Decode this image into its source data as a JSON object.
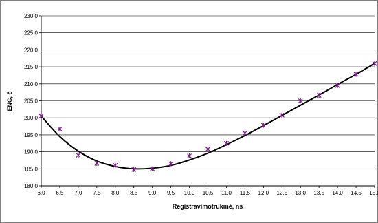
{
  "chart_data": {
    "type": "scatter",
    "title": "",
    "xlabel": "Registravimotrukmė, ns",
    "ylabel": "ENC, ē",
    "xlim": [
      6.0,
      15.0
    ],
    "ylim": [
      180.0,
      230.0
    ],
    "x_ticks": [
      6.0,
      6.5,
      7.0,
      7.5,
      8.0,
      8.5,
      9.0,
      9.5,
      10.0,
      10.5,
      11.0,
      11.5,
      12.0,
      12.5,
      13.0,
      13.5,
      14.0,
      14.5,
      15.0
    ],
    "x_tick_labels": [
      "6,0",
      "6,5",
      "7,0",
      "7,5",
      "8,0",
      "8,5",
      "9,0",
      "9,5",
      "10,0",
      "10,5",
      "11,0",
      "11,5",
      "12,0",
      "12,5",
      "13,0",
      "13,5",
      "14,0",
      "14,5",
      "15,0"
    ],
    "y_ticks": [
      180,
      185,
      190,
      195,
      200,
      205,
      210,
      215,
      220,
      225,
      230
    ],
    "y_tick_labels": [
      "180,0",
      "185,0",
      "190,0",
      "195,0",
      "200,0",
      "205,0",
      "210,0",
      "215,0",
      "220,0",
      "225,0",
      "230,0"
    ],
    "grid": "horizontal",
    "legend": "none",
    "series": [
      {
        "marker": "star",
        "color": "#7a1a8c",
        "points": [
          [
            6.0,
            200.5
          ],
          [
            6.5,
            196.7
          ],
          [
            7.0,
            189.0
          ],
          [
            7.5,
            186.6
          ],
          [
            8.0,
            186.0
          ],
          [
            8.5,
            184.8
          ],
          [
            9.0,
            185.0
          ],
          [
            9.5,
            186.5
          ],
          [
            10.0,
            188.8
          ],
          [
            10.5,
            190.8
          ],
          [
            11.0,
            192.5
          ],
          [
            11.5,
            195.5
          ],
          [
            12.0,
            197.8
          ],
          [
            12.5,
            200.8
          ],
          [
            13.0,
            205.0
          ],
          [
            13.5,
            206.6
          ],
          [
            14.0,
            209.5
          ],
          [
            14.5,
            212.8
          ],
          [
            15.0,
            216.0
          ]
        ]
      },
      {
        "kind": "trendline",
        "color": "#000000",
        "points": [
          [
            6.0,
            200.5
          ],
          [
            6.5,
            194.5
          ],
          [
            7.0,
            190.2
          ],
          [
            7.5,
            187.3
          ],
          [
            8.0,
            185.7
          ],
          [
            8.5,
            185.0
          ],
          [
            9.0,
            185.2
          ],
          [
            9.5,
            186.0
          ],
          [
            10.0,
            187.6
          ],
          [
            10.5,
            189.6
          ],
          [
            11.0,
            192.1
          ],
          [
            11.5,
            194.8
          ],
          [
            12.0,
            197.7
          ],
          [
            12.5,
            200.7
          ],
          [
            13.0,
            203.7
          ],
          [
            13.5,
            206.7
          ],
          [
            14.0,
            209.8
          ],
          [
            14.5,
            212.8
          ],
          [
            15.0,
            216.0
          ]
        ]
      }
    ]
  }
}
